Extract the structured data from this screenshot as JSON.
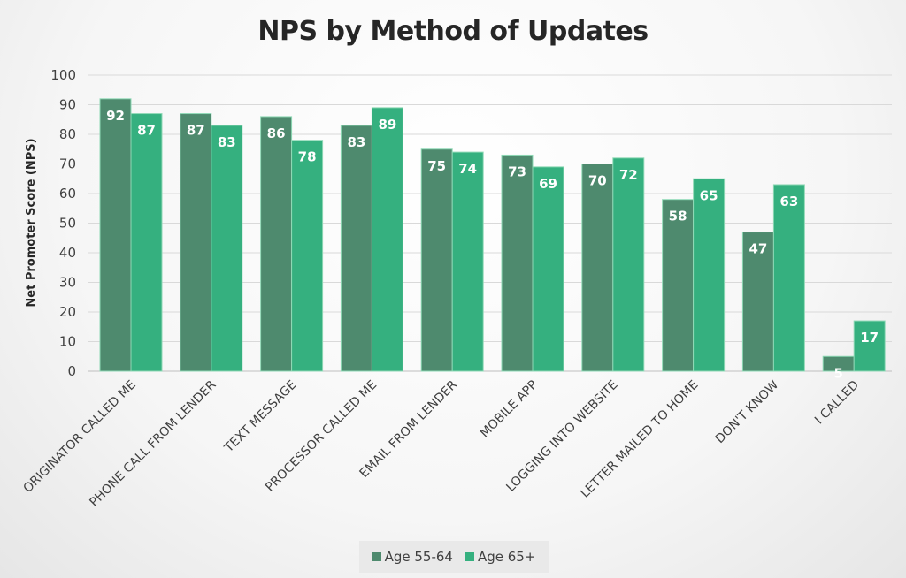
{
  "chart_data": {
    "type": "bar",
    "title": "NPS by Method of Updates",
    "xlabel": "",
    "ylabel": "Net Promoter Score (NPS)",
    "ylim": [
      0,
      100
    ],
    "yticks": [
      0,
      10,
      20,
      30,
      40,
      50,
      60,
      70,
      80,
      90,
      100
    ],
    "grid": true,
    "legend_position": "bottom",
    "categories": [
      "ORIGINATOR CALLED ME",
      "PHONE CALL FROM LENDER",
      "TEXT MESSAGE",
      "PROCESSOR CALLED ME",
      "EMAIL FROM LENDER",
      "MOBILE APP",
      "LOGGING INTO WEBSITE",
      "LETTER MAILED TO HOME",
      "DON'T KNOW",
      "I CALLED"
    ],
    "series": [
      {
        "name": "Age 55-64",
        "color": "#4e8a6e",
        "values": [
          92,
          87,
          86,
          83,
          75,
          73,
          70,
          58,
          47,
          5
        ]
      },
      {
        "name": "Age 65+",
        "color": "#35b07f",
        "values": [
          87,
          83,
          78,
          89,
          74,
          69,
          72,
          65,
          63,
          17
        ]
      }
    ]
  }
}
